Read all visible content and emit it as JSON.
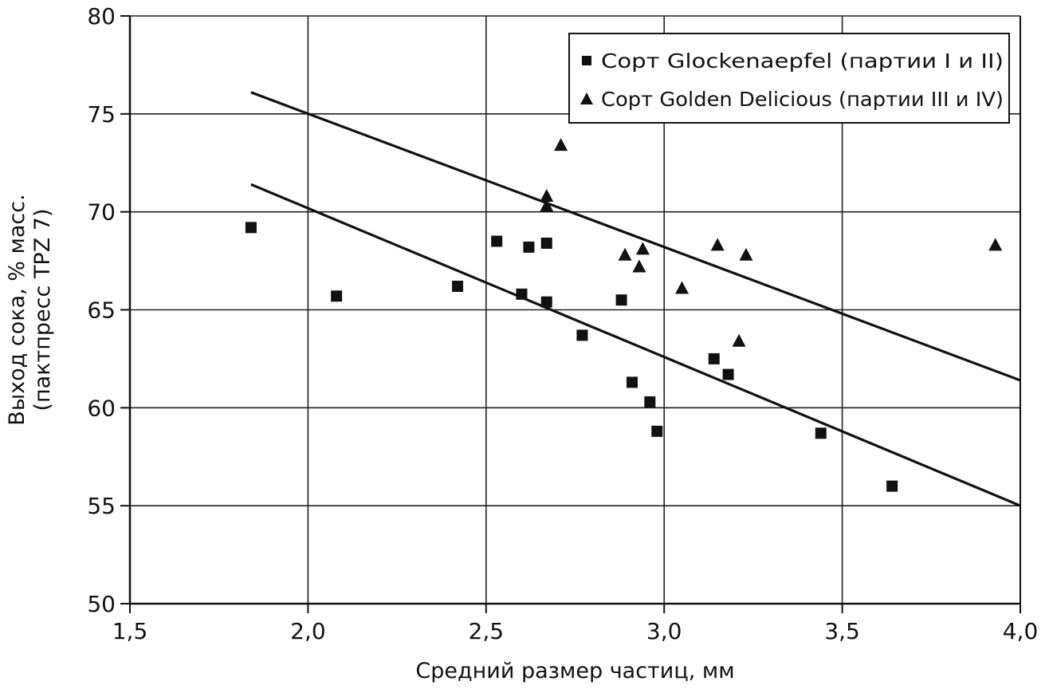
{
  "chart_data": {
    "type": "scatter",
    "title": "",
    "xlabel": "Средний размер частиц, мм",
    "ylabel_lines": [
      "Выход сока, % масс.",
      "(пактпресс TPZ 7)"
    ],
    "xlim": [
      1.5,
      4.0
    ],
    "ylim": [
      50,
      80
    ],
    "x_ticks": [
      1.5,
      2.0,
      2.5,
      3.0,
      3.5,
      4.0
    ],
    "x_tick_labels": [
      "1,5",
      "2,0",
      "2,5",
      "3,0",
      "3,5",
      "4,0"
    ],
    "y_ticks": [
      50,
      55,
      60,
      65,
      70,
      75,
      80
    ],
    "y_tick_labels": [
      "50",
      "55",
      "60",
      "65",
      "70",
      "75",
      "80"
    ],
    "grid": "horizontal",
    "legend_position": "top-right",
    "series": [
      {
        "name": "Сорт Glockenaepfel (партии I и II)",
        "marker": "square",
        "color": "#111111",
        "points": [
          {
            "x": 1.84,
            "y": 69.2
          },
          {
            "x": 2.08,
            "y": 65.7
          },
          {
            "x": 2.42,
            "y": 66.2
          },
          {
            "x": 2.53,
            "y": 68.5
          },
          {
            "x": 2.6,
            "y": 65.8
          },
          {
            "x": 2.62,
            "y": 68.2
          },
          {
            "x": 2.67,
            "y": 68.4
          },
          {
            "x": 2.67,
            "y": 65.4
          },
          {
            "x": 2.77,
            "y": 63.7
          },
          {
            "x": 2.88,
            "y": 65.5
          },
          {
            "x": 2.91,
            "y": 61.3
          },
          {
            "x": 2.96,
            "y": 60.3
          },
          {
            "x": 2.98,
            "y": 58.8
          },
          {
            "x": 3.14,
            "y": 62.5
          },
          {
            "x": 3.18,
            "y": 61.7
          },
          {
            "x": 3.44,
            "y": 58.7
          },
          {
            "x": 3.64,
            "y": 56.0
          }
        ],
        "trend": {
          "x1": 1.84,
          "y1": 71.4,
          "x2": 4.0,
          "y2": 55.0
        }
      },
      {
        "name": "Сорт Golden Delicious (партии III и IV)",
        "marker": "triangle",
        "color": "#111111",
        "points": [
          {
            "x": 2.67,
            "y": 70.8
          },
          {
            "x": 2.67,
            "y": 70.3
          },
          {
            "x": 2.71,
            "y": 73.4
          },
          {
            "x": 2.89,
            "y": 67.8
          },
          {
            "x": 2.93,
            "y": 67.2
          },
          {
            "x": 2.94,
            "y": 68.1
          },
          {
            "x": 3.05,
            "y": 66.1
          },
          {
            "x": 3.15,
            "y": 68.3
          },
          {
            "x": 3.21,
            "y": 63.4
          },
          {
            "x": 3.23,
            "y": 67.8
          },
          {
            "x": 3.93,
            "y": 68.3
          }
        ],
        "trend": {
          "x1": 1.84,
          "y1": 76.1,
          "x2": 4.0,
          "y2": 61.4
        }
      }
    ]
  }
}
